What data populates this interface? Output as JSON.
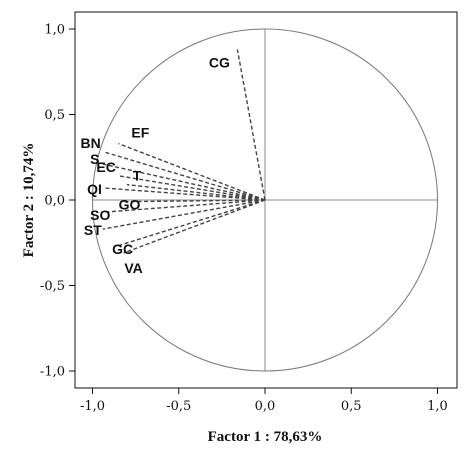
{
  "chart_data": {
    "type": "scatter",
    "subtype": "correlation-circle",
    "title": "",
    "xlabel": "Factor 1 : 78,63%",
    "ylabel": "Factor 2 : 10,74%",
    "xlim": [
      -1.0,
      1.0
    ],
    "ylim": [
      -1.0,
      1.0
    ],
    "xticks": [
      "-1,0",
      "-0,5",
      "0,0",
      "0,5",
      "1,0"
    ],
    "yticks": [
      "1,0",
      "0,5",
      "0,0",
      "-0,5",
      "-1,0"
    ],
    "grid": false,
    "unit_circle": true,
    "reference_lines": [
      "x=0",
      "y=0"
    ],
    "vector_style": "dashed",
    "line_color": "#444444",
    "variables": [
      {
        "name": "CG",
        "x": -0.16,
        "y": 0.88
      },
      {
        "name": "EF",
        "x": -0.85,
        "y": 0.33
      },
      {
        "name": "BN",
        "x": -0.93,
        "y": 0.28
      },
      {
        "name": "S",
        "x": -0.94,
        "y": 0.21
      },
      {
        "name": "EC",
        "x": -0.84,
        "y": 0.14
      },
      {
        "name": "T",
        "x": -0.8,
        "y": 0.09
      },
      {
        "name": "QI",
        "x": -0.93,
        "y": 0.07
      },
      {
        "name": "GO",
        "x": -0.82,
        "y": -0.01
      },
      {
        "name": "SO",
        "x": -0.92,
        "y": -0.07
      },
      {
        "name": "ST",
        "x": -0.94,
        "y": -0.17
      },
      {
        "name": "GC",
        "x": -0.86,
        "y": -0.27
      },
      {
        "name": "VA",
        "x": -0.82,
        "y": -0.31
      }
    ]
  }
}
